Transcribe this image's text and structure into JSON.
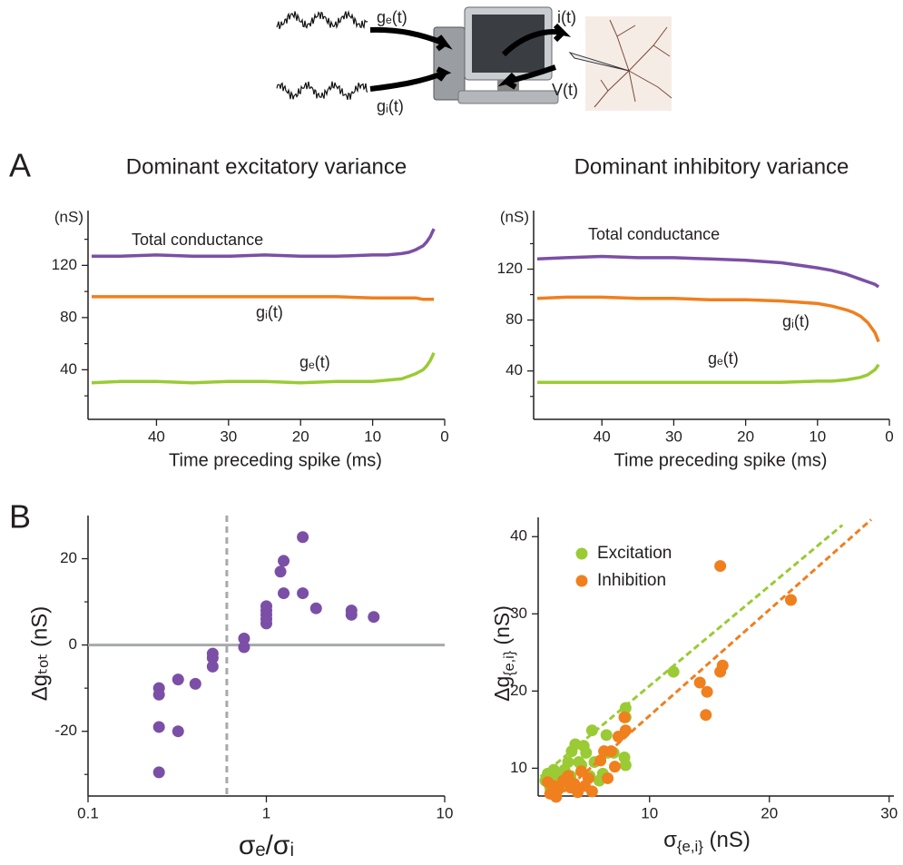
{
  "panel_labels": [
    "A",
    "B"
  ],
  "schematic": {
    "labels": [
      "gₑ(t)",
      "gᵢ(t)",
      "i(t)",
      "V(t)"
    ]
  },
  "chart_data": [
    {
      "type": "line",
      "title": "Dominant excitatory variance",
      "xlabel": "Time preceding spike (ms)",
      "ylabel": "(nS)",
      "x": [
        49,
        45,
        40,
        35,
        30,
        25,
        20,
        15,
        10,
        8,
        6,
        5,
        4,
        3,
        2.5,
        2,
        1.5
      ],
      "xlim": [
        49.5,
        0
      ],
      "xticks": [
        40,
        30,
        20,
        10,
        0
      ],
      "ylim": [
        2,
        162
      ],
      "yticks": [
        40,
        80,
        120
      ],
      "yminor": [
        20,
        60,
        100,
        140
      ],
      "series": [
        {
          "name": "Total conductance",
          "color": "#7b4fa6",
          "values": [
            127,
            127,
            128,
            127,
            127,
            128,
            127,
            127,
            128,
            128,
            129,
            130,
            132,
            135,
            138,
            142,
            148
          ]
        },
        {
          "name": "gᵢ(t)",
          "color": "#f07f1e",
          "values": [
            96,
            96,
            96,
            96,
            96,
            96,
            96,
            96,
            95,
            95,
            95,
            95,
            95,
            94,
            94,
            94,
            94
          ]
        },
        {
          "name": "gₑ(t)",
          "color": "#9acb34",
          "values": [
            30,
            31,
            31,
            30,
            31,
            31,
            30,
            31,
            31,
            32,
            33,
            35,
            37,
            40,
            43,
            47,
            53
          ]
        }
      ]
    },
    {
      "type": "line",
      "title": "Dominant inhibitory variance",
      "xlabel": "Time preceding spike (ms)",
      "ylabel": "(nS)",
      "x": [
        49,
        45,
        40,
        35,
        30,
        25,
        20,
        15,
        10,
        8,
        6,
        5,
        4,
        3,
        2.5,
        2,
        1.5
      ],
      "xlim": [
        49.5,
        0
      ],
      "xticks": [
        40,
        30,
        20,
        10,
        0
      ],
      "ylim": [
        2,
        166
      ],
      "yticks": [
        40,
        80,
        120
      ],
      "yminor": [
        20,
        60,
        100,
        140
      ],
      "series": [
        {
          "name": "Total conductance",
          "color": "#7b4fa6",
          "values": [
            128,
            129,
            130,
            129,
            129,
            128,
            127,
            125,
            121,
            119,
            116,
            114,
            112,
            110,
            109,
            108,
            106
          ]
        },
        {
          "name": "gᵢ(t)",
          "color": "#f07f1e",
          "values": [
            97,
            98,
            98,
            97,
            97,
            96,
            96,
            95,
            93,
            91,
            88,
            86,
            83,
            78,
            74,
            70,
            63
          ]
        },
        {
          "name": "gₑ(t)",
          "color": "#9acb34",
          "values": [
            31,
            31,
            31,
            31,
            31,
            31,
            31,
            31,
            32,
            32,
            33,
            34,
            35,
            37,
            39,
            41,
            45
          ]
        }
      ]
    },
    {
      "type": "scatter",
      "xlabel": "σₑ/σᵢ",
      "ylabel": "Δgₜₒₜ  (nS)",
      "xscale": "log",
      "xlim": [
        0.1,
        10
      ],
      "xticks": [
        0.1,
        1,
        10
      ],
      "ylim": [
        -35,
        30
      ],
      "yticks": [
        -20,
        0,
        20
      ],
      "yminor": [
        -30,
        -10,
        10
      ],
      "vline": 0.6,
      "hline": 0,
      "series": [
        {
          "color": "#7b4fa6",
          "x": [
            0.25,
            0.25,
            0.25,
            0.25,
            0.32,
            0.32,
            0.4,
            0.5,
            0.5,
            0.5,
            0.75,
            0.75,
            1,
            1,
            1,
            1,
            1,
            1.2,
            1.25,
            1.25,
            1.6,
            1.6,
            1.9,
            3,
            3,
            4
          ],
          "values": [
            -10,
            -11.5,
            -19,
            -29.5,
            -8,
            -20,
            -9,
            -2,
            -3,
            -5,
            1.5,
            -0.5,
            5,
            6,
            7,
            8,
            9,
            17,
            19.5,
            12,
            25,
            12,
            8.5,
            8,
            7,
            6.5
          ]
        }
      ]
    },
    {
      "type": "scatter",
      "xlabel": "σ{e,i} (nS)",
      "ylabel": "Δg{e,i} (nS)",
      "legend": "upper left",
      "xlim": [
        0.7,
        30.4
      ],
      "xticks": [
        10,
        20,
        30
      ],
      "ylim": [
        6.4,
        42.5
      ],
      "yticks": [
        10,
        20,
        30,
        40
      ],
      "series": [
        {
          "name": "Excitation",
          "color": "#9acb34",
          "x": [
            1.3,
            1.5,
            1.7,
            1.9,
            2.0,
            2.2,
            2.4,
            2.6,
            2.9,
            3.2,
            3.4,
            3.5,
            3.8,
            4.1,
            4.3,
            4.5,
            4.7,
            5.0,
            5.2,
            5.4,
            5.8,
            6.1,
            6.4,
            6.5,
            7.0,
            7.9,
            8.0,
            8.0,
            8.0,
            12.0
          ],
          "values": [
            8.4,
            9.3,
            7.5,
            8.4,
            9.8,
            7.3,
            8.7,
            8.0,
            9.8,
            10.8,
            9.0,
            12.2,
            13.1,
            10.8,
            10.4,
            12.9,
            12.0,
            9.0,
            14.9,
            10.8,
            8.4,
            9.3,
            14.3,
            12.0,
            12.0,
            11.4,
            16.6,
            17.8,
            10.4,
            22.5
          ],
          "fit_x": [
            0.9,
            26.1
          ],
          "fit_y": [
            8.9,
            41.5
          ]
        },
        {
          "name": "Inhibition",
          "color": "#f07f1e",
          "x": [
            1.5,
            1.7,
            2.0,
            2.2,
            2.4,
            2.8,
            3.2,
            3.4,
            3.7,
            4.0,
            4.3,
            4.6,
            4.9,
            5.2,
            5.9,
            6.2,
            6.5,
            6.8,
            7.1,
            7.4,
            7.9,
            8.0,
            14.2,
            14.7,
            14.8,
            15.9,
            16.1,
            15.9,
            21.8
          ],
          "values": [
            8.2,
            6.7,
            7.7,
            6.3,
            7.3,
            8.4,
            9.0,
            7.5,
            8.0,
            6.9,
            9.6,
            7.7,
            8.7,
            7.0,
            11.0,
            12.2,
            8.7,
            12.2,
            10.2,
            14.1,
            16.6,
            14.9,
            21.1,
            16.9,
            19.9,
            22.5,
            23.3,
            36.2,
            31.8
          ],
          "fit_x": [
            2.2,
            28.5
          ],
          "fit_y": [
            6.1,
            42.2
          ]
        }
      ]
    }
  ]
}
